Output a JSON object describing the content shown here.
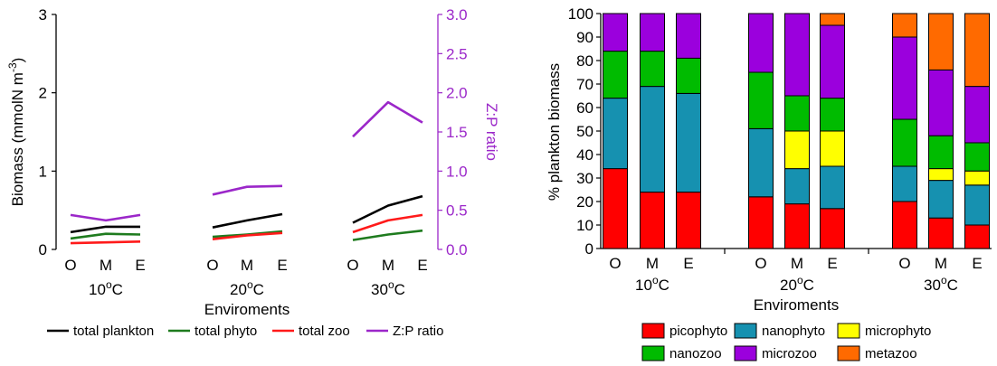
{
  "colors": {
    "total_plankton": "#000000",
    "total_phyto": "#1e7b1e",
    "total_zoo": "#ff1a1a",
    "zp_ratio": "#9b27c9",
    "picophyto": "#ff0000",
    "nanophyto": "#1691b0",
    "microphyto": "#ffff00",
    "nanozoo": "#00bb00",
    "microzoo": "#9b00dd",
    "metazoo": "#ff6a00"
  },
  "chart_data": [
    {
      "type": "line",
      "ylabel": "Biomass (mmolN m",
      "ylabel_sup": "-3",
      "ylabel_end": ")",
      "y2label": "Z:P ratio",
      "xlabel": "Enviroments",
      "ylim": [
        0,
        3
      ],
      "y2lim": [
        0,
        3
      ],
      "yticks": [
        "0",
        "1",
        "2",
        "3"
      ],
      "y2ticks": [
        "0.0",
        "0.5",
        "1.0",
        "1.5",
        "2.0",
        "2.5",
        "3.0"
      ],
      "groups": [
        {
          "label": "10",
          "unit": "C",
          "deg": "o",
          "categories": [
            "O",
            "M",
            "E"
          ]
        },
        {
          "label": "20",
          "unit": "C",
          "deg": "o",
          "categories": [
            "O",
            "M",
            "E"
          ]
        },
        {
          "label": "30",
          "unit": "C",
          "deg": "o",
          "categories": [
            "O",
            "M",
            "E"
          ]
        }
      ],
      "series": [
        {
          "name": "total plankton",
          "color_key": "total_plankton",
          "axis": "left",
          "values": [
            [
              0.22,
              0.29,
              0.29
            ],
            [
              0.28,
              0.37,
              0.45
            ],
            [
              0.34,
              0.56,
              0.68
            ]
          ]
        },
        {
          "name": "total phyto",
          "color_key": "total_phyto",
          "axis": "left",
          "values": [
            [
              0.14,
              0.2,
              0.19
            ],
            [
              0.16,
              0.19,
              0.23
            ],
            [
              0.12,
              0.19,
              0.24
            ]
          ]
        },
        {
          "name": "total zoo",
          "color_key": "total_zoo",
          "axis": "left",
          "values": [
            [
              0.08,
              0.09,
              0.1
            ],
            [
              0.13,
              0.18,
              0.21
            ],
            [
              0.22,
              0.37,
              0.44
            ]
          ]
        },
        {
          "name": "Z:P ratio",
          "color_key": "zp_ratio",
          "axis": "right",
          "values": [
            [
              0.44,
              0.37,
              0.44
            ],
            [
              0.7,
              0.8,
              0.81
            ],
            [
              1.44,
              1.88,
              1.62
            ]
          ]
        }
      ]
    },
    {
      "type": "bar",
      "stacked": true,
      "ylabel": "% plankton biomass",
      "xlabel": "Enviroments",
      "ylim": [
        0,
        100
      ],
      "yticks": [
        "0",
        "10",
        "20",
        "30",
        "40",
        "50",
        "60",
        "70",
        "80",
        "90",
        "100"
      ],
      "groups": [
        {
          "label": "10",
          "unit": "C",
          "deg": "o",
          "categories": [
            "O",
            "M",
            "E"
          ]
        },
        {
          "label": "20",
          "unit": "C",
          "deg": "o",
          "categories": [
            "O",
            "M",
            "E"
          ]
        },
        {
          "label": "30",
          "unit": "C",
          "deg": "o",
          "categories": [
            "O",
            "M",
            "E"
          ]
        }
      ],
      "series": [
        {
          "name": "picophyto",
          "color_key": "picophyto",
          "values": [
            34,
            24,
            24,
            22,
            19,
            17,
            20,
            13,
            10
          ]
        },
        {
          "name": "nanophyto",
          "color_key": "nanophyto",
          "values": [
            30,
            45,
            42,
            29,
            15,
            18,
            15,
            16,
            17
          ]
        },
        {
          "name": "microphyto",
          "color_key": "microphyto",
          "values": [
            0,
            0,
            0,
            0,
            16,
            15,
            0,
            5,
            6
          ]
        },
        {
          "name": "nanozoo",
          "color_key": "nanozoo",
          "values": [
            20,
            15,
            15,
            24,
            15,
            14,
            20,
            14,
            12
          ]
        },
        {
          "name": "microzoo",
          "color_key": "microzoo",
          "values": [
            16,
            16,
            19,
            25,
            35,
            31,
            35,
            28,
            24
          ]
        },
        {
          "name": "metazoo",
          "color_key": "metazoo",
          "values": [
            0,
            0,
            0,
            0,
            0,
            5,
            10,
            24,
            31
          ]
        }
      ]
    }
  ]
}
